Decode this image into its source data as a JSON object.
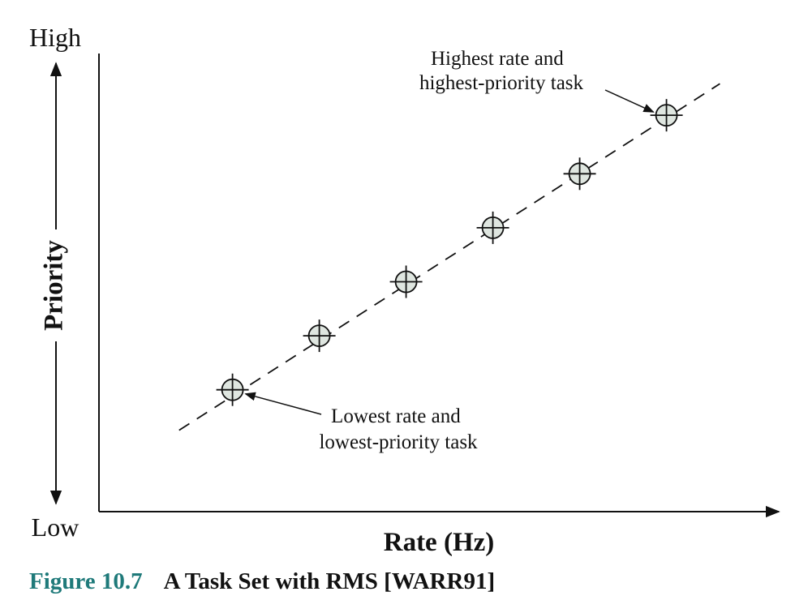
{
  "figure": {
    "number": "Figure 10.7",
    "title": "A Task Set with RMS [WARR91]"
  },
  "colors": {
    "caption_accent": "#1f7a7a",
    "marker_fill": "#dfe6e0",
    "ink": "#111111"
  },
  "chart_data": {
    "type": "scatter",
    "title": "",
    "xlabel": "Rate (Hz)",
    "ylabel": "Priority",
    "y_low_label": "Low",
    "y_high_label": "High",
    "xlim": [
      0,
      10
    ],
    "ylim": [
      0,
      10
    ],
    "grid": false,
    "points": [
      {
        "x": 2.0,
        "y": 2.6
      },
      {
        "x": 3.3,
        "y": 3.8
      },
      {
        "x": 4.6,
        "y": 5.0
      },
      {
        "x": 5.9,
        "y": 6.2
      },
      {
        "x": 7.2,
        "y": 7.4
      },
      {
        "x": 8.5,
        "y": 8.7
      }
    ],
    "trend_line": {
      "style": "dashed",
      "from": {
        "x": 1.2,
        "y": 1.7
      },
      "to": {
        "x": 9.3,
        "y": 9.4
      }
    },
    "annotations": [
      {
        "text_lines": [
          "Highest rate and",
          "highest-priority task"
        ],
        "target_point": 5
      },
      {
        "text_lines": [
          "Lowest rate and",
          "lowest-priority task"
        ],
        "target_point": 0
      }
    ]
  }
}
